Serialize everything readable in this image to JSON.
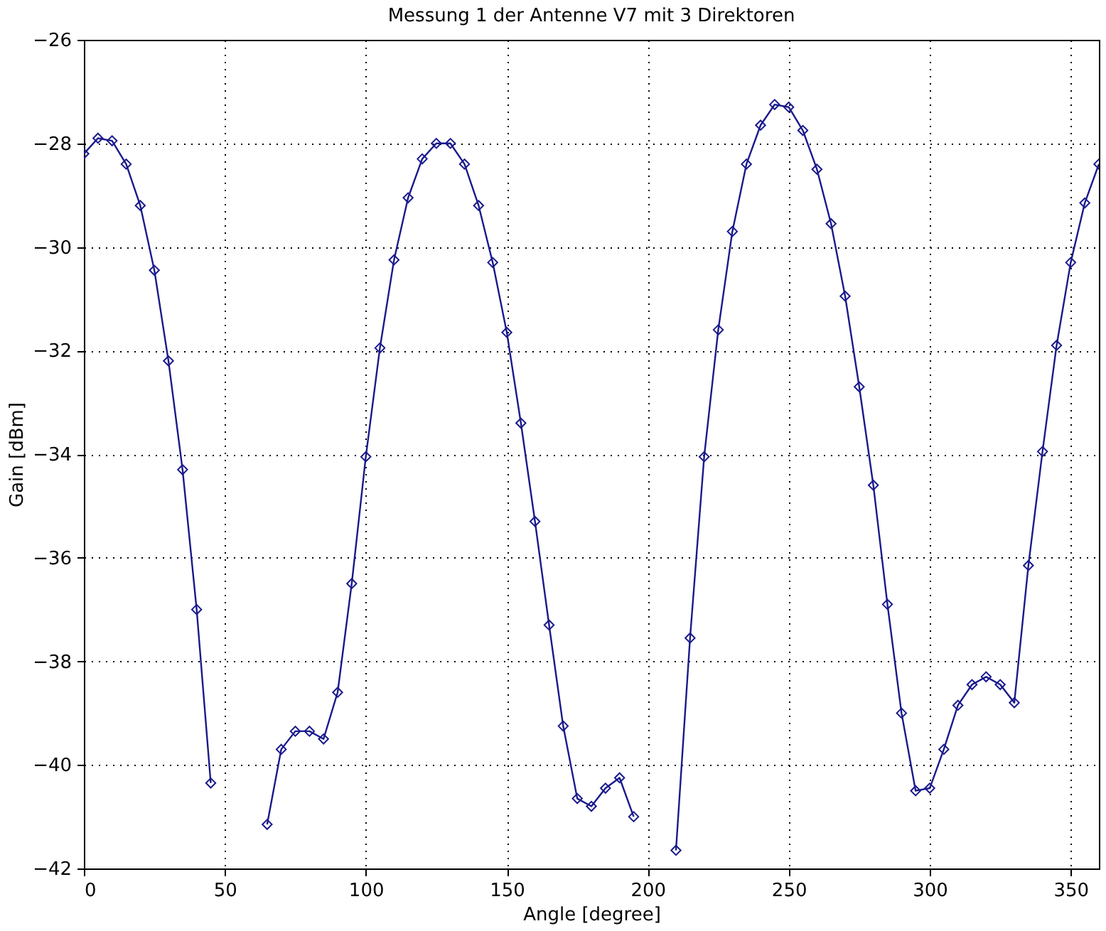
{
  "chart_data": {
    "type": "line",
    "title": "Messung 1 der Antenne V7 mit 3 Direktoren",
    "xlabel": "Angle [degree]",
    "ylabel": "Gain [dBm]",
    "x": [
      0,
      5,
      10,
      15,
      20,
      25,
      30,
      35,
      40,
      45,
      50,
      55,
      60,
      65,
      70,
      75,
      80,
      85,
      90,
      95,
      100,
      105,
      110,
      115,
      120,
      125,
      130,
      135,
      140,
      145,
      150,
      155,
      160,
      165,
      170,
      175,
      180,
      185,
      190,
      195,
      200,
      205,
      210,
      215,
      220,
      225,
      230,
      235,
      240,
      245,
      250,
      255,
      260,
      265,
      270,
      275,
      280,
      285,
      290,
      295,
      300,
      305,
      310,
      315,
      320,
      325,
      330,
      335,
      340,
      345,
      350,
      355,
      360
    ],
    "series": [
      {
        "color": "#1a1a8c",
        "values": [
          -28.2,
          -27.9,
          -27.95,
          -28.4,
          -29.2,
          -30.45,
          -32.2,
          -34.3,
          -37.0,
          -40.35,
          null,
          null,
          null,
          -41.15,
          -39.7,
          -39.35,
          -39.35,
          -39.5,
          -38.6,
          -36.5,
          -34.05,
          -31.95,
          -30.25,
          -29.05,
          -28.3,
          -28.0,
          -28.0,
          -28.4,
          -29.2,
          -30.3,
          -31.65,
          -33.4,
          -35.3,
          -37.3,
          -39.25,
          -40.65,
          -40.8,
          -40.45,
          -40.25,
          -41.0,
          null,
          null,
          -41.65,
          -37.55,
          -34.05,
          -31.6,
          -29.7,
          -28.4,
          -27.65,
          -27.25,
          -27.3,
          -27.75,
          -28.5,
          -29.55,
          -30.95,
          -32.7,
          -34.6,
          -36.9,
          -39.0,
          -40.5,
          -40.45,
          -39.7,
          -38.85,
          -38.45,
          -38.3,
          -38.45,
          -38.8,
          -36.15,
          -33.95,
          -31.9,
          -30.3,
          -29.15,
          -28.4
        ]
      }
    ],
    "xlim": [
      0,
      360
    ],
    "xticks": [
      0,
      50,
      100,
      150,
      200,
      250,
      300,
      350
    ],
    "ylim": [
      -42,
      -26
    ],
    "yticks": [
      -42,
      -40,
      -38,
      -36,
      -34,
      -32,
      -30,
      -28,
      -26
    ],
    "grid": true,
    "marker": "diamond",
    "line_style": "solid"
  }
}
